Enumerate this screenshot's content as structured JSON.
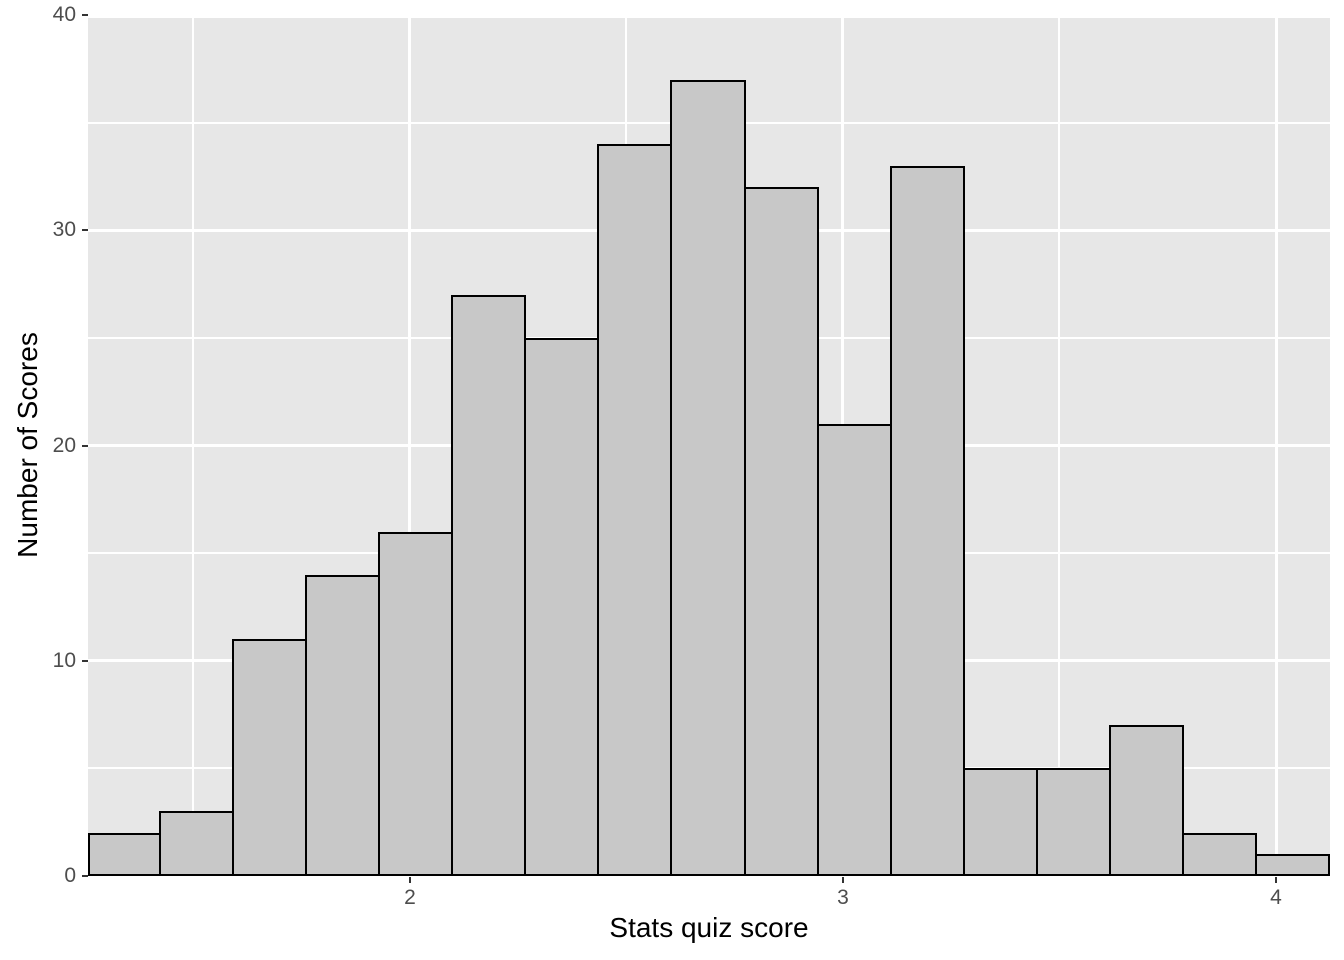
{
  "chart_data": {
    "type": "bar",
    "subtype": "histogram",
    "title": "",
    "xlabel": "Stats quiz score",
    "ylabel": "Number of Scores",
    "counts": [
      2,
      3,
      11,
      14,
      16,
      27,
      25,
      34,
      37,
      32,
      21,
      33,
      5,
      5,
      7,
      2,
      1
    ],
    "bin_start": 1.2564,
    "bin_width": 0.16872,
    "xlim": [
      1.2564,
      4.1247
    ],
    "ylim": [
      0,
      40
    ],
    "x_major_ticks": [
      2,
      3,
      4
    ],
    "y_major_ticks": [
      0,
      10,
      20,
      30,
      40
    ],
    "x_minor_gridlines": [
      1.5,
      2.5,
      3.5
    ],
    "y_minor_gridlines": [
      5,
      15,
      25,
      35
    ],
    "grid": "on",
    "legend_position": "none",
    "colors": {
      "background": "#FFFFFF",
      "panel_background": "#E7E7E7",
      "gridline": "#FFFFFF",
      "bar_fill": "#C8C8C8",
      "bar_stroke": "#000000",
      "tick_mark": "#333333",
      "tick_label": "#4D4D4D",
      "axis_title": "#000000"
    }
  }
}
